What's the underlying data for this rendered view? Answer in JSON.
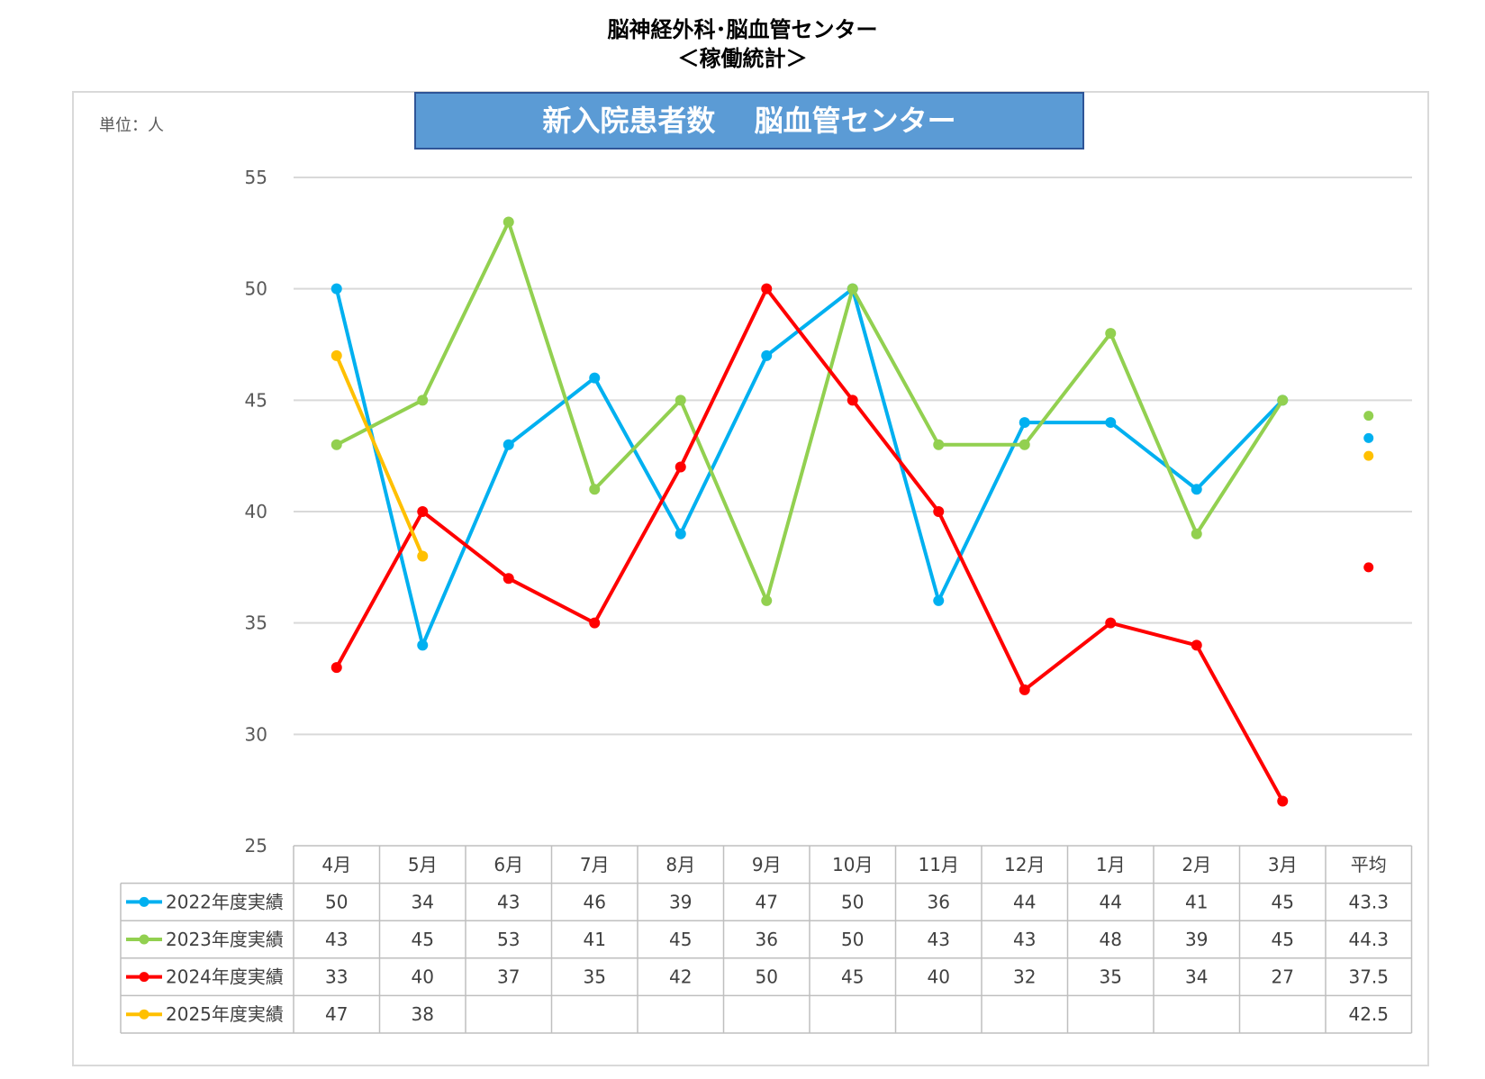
{
  "header": {
    "line1": "脳神経外科･脳血管センター",
    "line2": "＜稼働統計＞"
  },
  "unit_label": "単位：人",
  "chart_data": {
    "type": "line",
    "title": "新入院患者数　 脳血管センター",
    "categories": [
      "4月",
      "5月",
      "6月",
      "7月",
      "8月",
      "9月",
      "10月",
      "11月",
      "12月",
      "1月",
      "2月",
      "3月"
    ],
    "average_label": "平均",
    "ylim": [
      25,
      55
    ],
    "yticks": [
      25,
      30,
      35,
      40,
      45,
      50,
      55
    ],
    "grid": true,
    "series": [
      {
        "name": "2022年度実績",
        "color": "#00b0f0",
        "values": [
          50,
          34,
          43,
          46,
          39,
          47,
          50,
          36,
          44,
          44,
          41,
          45
        ],
        "average": 43.3
      },
      {
        "name": "2023年度実績",
        "color": "#92d050",
        "values": [
          43,
          45,
          53,
          41,
          45,
          36,
          50,
          43,
          43,
          48,
          39,
          45
        ],
        "average": 44.3
      },
      {
        "name": "2024年度実績",
        "color": "#ff0000",
        "values": [
          33,
          40,
          37,
          35,
          42,
          50,
          45,
          40,
          32,
          35,
          34,
          27
        ],
        "average": 37.5
      },
      {
        "name": "2025年度実績",
        "color": "#ffc000",
        "values": [
          47,
          38,
          null,
          null,
          null,
          null,
          null,
          null,
          null,
          null,
          null,
          null
        ],
        "average": 42.5
      }
    ]
  }
}
